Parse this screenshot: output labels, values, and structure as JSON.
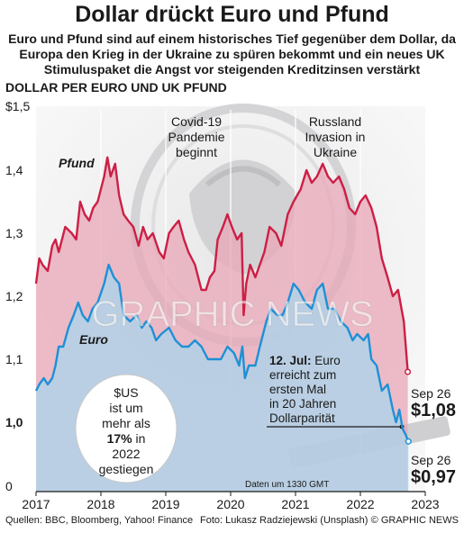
{
  "header": {
    "title": "Dollar drückt Euro und Pfund",
    "subtitle": "Euro und Pfund sind auf einem historisches Tief gegenüber dem Dollar, da Europa den Krieg in der Ukraine zu spüren bekommt und ein neues UK Stimuluspaket die Angst vor steigenden Kreditzinsen verstärkt",
    "section_label": "DOLLAR PER EURO UND UK PFUND"
  },
  "chart_data": {
    "type": "line",
    "ylabel": "",
    "ylim": [
      0,
      1.5
    ],
    "y_ticks": [
      {
        "value": 1.5,
        "label": "$1,5",
        "bold": false
      },
      {
        "value": 1.4,
        "label": "1,4",
        "bold": false
      },
      {
        "value": 1.3,
        "label": "1,3",
        "bold": false
      },
      {
        "value": 1.2,
        "label": "1,2",
        "bold": false
      },
      {
        "value": 1.1,
        "label": "1,1",
        "bold": false
      },
      {
        "value": 1.0,
        "label": "1,0",
        "bold": true
      },
      {
        "value": 0.9,
        "label": "0",
        "bold": false
      }
    ],
    "x_ticks": [
      "2017",
      "2018",
      "2019",
      "2020",
      "2021",
      "2022",
      "2023"
    ],
    "grid": "vertical",
    "series": [
      {
        "name": "Pfund",
        "color": "#cc1f45",
        "fill": "#e8a7b7",
        "values": [
          [
            2017.0,
            1.22
          ],
          [
            2017.05,
            1.26
          ],
          [
            2017.1,
            1.25
          ],
          [
            2017.18,
            1.24
          ],
          [
            2017.25,
            1.28
          ],
          [
            2017.3,
            1.29
          ],
          [
            2017.35,
            1.27
          ],
          [
            2017.45,
            1.31
          ],
          [
            2017.55,
            1.3
          ],
          [
            2017.62,
            1.29
          ],
          [
            2017.68,
            1.35
          ],
          [
            2017.75,
            1.33
          ],
          [
            2017.82,
            1.32
          ],
          [
            2017.88,
            1.34
          ],
          [
            2017.95,
            1.35
          ],
          [
            2018.05,
            1.39
          ],
          [
            2018.1,
            1.42
          ],
          [
            2018.15,
            1.39
          ],
          [
            2018.22,
            1.41
          ],
          [
            2018.28,
            1.36
          ],
          [
            2018.35,
            1.33
          ],
          [
            2018.42,
            1.32
          ],
          [
            2018.5,
            1.31
          ],
          [
            2018.58,
            1.28
          ],
          [
            2018.65,
            1.31
          ],
          [
            2018.72,
            1.29
          ],
          [
            2018.8,
            1.3
          ],
          [
            2018.9,
            1.27
          ],
          [
            2018.97,
            1.26
          ],
          [
            2019.05,
            1.3
          ],
          [
            2019.12,
            1.31
          ],
          [
            2019.2,
            1.32
          ],
          [
            2019.28,
            1.29
          ],
          [
            2019.35,
            1.27
          ],
          [
            2019.45,
            1.25
          ],
          [
            2019.55,
            1.21
          ],
          [
            2019.62,
            1.21
          ],
          [
            2019.68,
            1.23
          ],
          [
            2019.75,
            1.24
          ],
          [
            2019.8,
            1.29
          ],
          [
            2019.88,
            1.31
          ],
          [
            2019.95,
            1.33
          ],
          [
            2020.02,
            1.31
          ],
          [
            2020.1,
            1.29
          ],
          [
            2020.17,
            1.3
          ],
          [
            2020.2,
            1.17
          ],
          [
            2020.24,
            1.22
          ],
          [
            2020.3,
            1.25
          ],
          [
            2020.38,
            1.23
          ],
          [
            2020.45,
            1.25
          ],
          [
            2020.52,
            1.27
          ],
          [
            2020.6,
            1.31
          ],
          [
            2020.7,
            1.3
          ],
          [
            2020.78,
            1.28
          ],
          [
            2020.88,
            1.33
          ],
          [
            2020.97,
            1.35
          ],
          [
            2021.08,
            1.37
          ],
          [
            2021.17,
            1.4
          ],
          [
            2021.25,
            1.38
          ],
          [
            2021.33,
            1.39
          ],
          [
            2021.42,
            1.41
          ],
          [
            2021.5,
            1.39
          ],
          [
            2021.58,
            1.38
          ],
          [
            2021.67,
            1.39
          ],
          [
            2021.75,
            1.37
          ],
          [
            2021.83,
            1.34
          ],
          [
            2021.92,
            1.33
          ],
          [
            2022.0,
            1.35
          ],
          [
            2022.08,
            1.36
          ],
          [
            2022.17,
            1.34
          ],
          [
            2022.25,
            1.31
          ],
          [
            2022.33,
            1.26
          ],
          [
            2022.42,
            1.23
          ],
          [
            2022.5,
            1.2
          ],
          [
            2022.58,
            1.21
          ],
          [
            2022.67,
            1.16
          ],
          [
            2022.73,
            1.08
          ]
        ]
      },
      {
        "name": "Euro",
        "color": "#1e90d6",
        "fill": "#a9d5ec",
        "values": [
          [
            2017.0,
            1.05
          ],
          [
            2017.05,
            1.06
          ],
          [
            2017.12,
            1.07
          ],
          [
            2017.18,
            1.06
          ],
          [
            2017.25,
            1.07
          ],
          [
            2017.3,
            1.09
          ],
          [
            2017.35,
            1.12
          ],
          [
            2017.42,
            1.12
          ],
          [
            2017.5,
            1.15
          ],
          [
            2017.58,
            1.17
          ],
          [
            2017.65,
            1.19
          ],
          [
            2017.72,
            1.17
          ],
          [
            2017.8,
            1.16
          ],
          [
            2017.87,
            1.18
          ],
          [
            2017.95,
            1.19
          ],
          [
            2018.05,
            1.22
          ],
          [
            2018.12,
            1.25
          ],
          [
            2018.2,
            1.23
          ],
          [
            2018.28,
            1.22
          ],
          [
            2018.35,
            1.17
          ],
          [
            2018.45,
            1.16
          ],
          [
            2018.55,
            1.17
          ],
          [
            2018.63,
            1.15
          ],
          [
            2018.7,
            1.16
          ],
          [
            2018.78,
            1.15
          ],
          [
            2018.85,
            1.13
          ],
          [
            2018.93,
            1.14
          ],
          [
            2019.05,
            1.15
          ],
          [
            2019.15,
            1.13
          ],
          [
            2019.25,
            1.12
          ],
          [
            2019.35,
            1.12
          ],
          [
            2019.45,
            1.13
          ],
          [
            2019.55,
            1.12
          ],
          [
            2019.65,
            1.1
          ],
          [
            2019.75,
            1.1
          ],
          [
            2019.85,
            1.1
          ],
          [
            2019.95,
            1.12
          ],
          [
            2020.05,
            1.11
          ],
          [
            2020.13,
            1.09
          ],
          [
            2020.18,
            1.12
          ],
          [
            2020.22,
            1.07
          ],
          [
            2020.28,
            1.09
          ],
          [
            2020.38,
            1.09
          ],
          [
            2020.45,
            1.12
          ],
          [
            2020.55,
            1.16
          ],
          [
            2020.62,
            1.18
          ],
          [
            2020.72,
            1.17
          ],
          [
            2020.8,
            1.17
          ],
          [
            2020.88,
            1.19
          ],
          [
            2020.97,
            1.22
          ],
          [
            2021.05,
            1.21
          ],
          [
            2021.15,
            1.19
          ],
          [
            2021.25,
            1.18
          ],
          [
            2021.33,
            1.21
          ],
          [
            2021.42,
            1.22
          ],
          [
            2021.5,
            1.18
          ],
          [
            2021.6,
            1.18
          ],
          [
            2021.7,
            1.16
          ],
          [
            2021.8,
            1.15
          ],
          [
            2021.88,
            1.13
          ],
          [
            2021.95,
            1.14
          ],
          [
            2022.05,
            1.13
          ],
          [
            2022.12,
            1.14
          ],
          [
            2022.17,
            1.1
          ],
          [
            2022.25,
            1.09
          ],
          [
            2022.33,
            1.05
          ],
          [
            2022.42,
            1.06
          ],
          [
            2022.5,
            1.02
          ],
          [
            2022.55,
            1.0
          ],
          [
            2022.6,
            1.02
          ],
          [
            2022.65,
            0.99
          ],
          [
            2022.7,
            0.98
          ],
          [
            2022.74,
            0.97
          ]
        ]
      }
    ]
  },
  "labels": {
    "series_pfund": "Pfund",
    "series_euro": "Euro",
    "covid_line1": "Covid-19",
    "covid_line2": "Pandemie",
    "covid_line3": "beginnt",
    "russia_line1": "Russland",
    "russia_line2": "Invasion in",
    "russia_line3": "Ukraine",
    "parity_date": "12. Jul:",
    "parity_line1": " Euro",
    "parity_line2": "erreicht zum",
    "parity_line3": "ersten Mal",
    "parity_line4": "in 20 Jahren",
    "parity_line5": "Dollarparität",
    "gbp_date": "Sep 26",
    "gbp_value": "$1,08",
    "eur_date": "Sep 26",
    "eur_value": "$0,97",
    "bubble_line1": "$US",
    "bubble_line2": "ist um",
    "bubble_line3": "mehr als",
    "bubble_pct": "17%",
    "bubble_line4": " in",
    "bubble_line5": "2022",
    "bubble_line6": "gestiegen",
    "data_time": "Daten um 1330 GMT"
  },
  "footer": {
    "sources": "Quellen: BBC, Bloomberg, Yahoo! Finance",
    "photo": "Foto: Lukasz Radziejewski (Unsplash)",
    "credit": "© GRAPHIC NEWS"
  },
  "watermark": "GRAPHIC NEWS"
}
